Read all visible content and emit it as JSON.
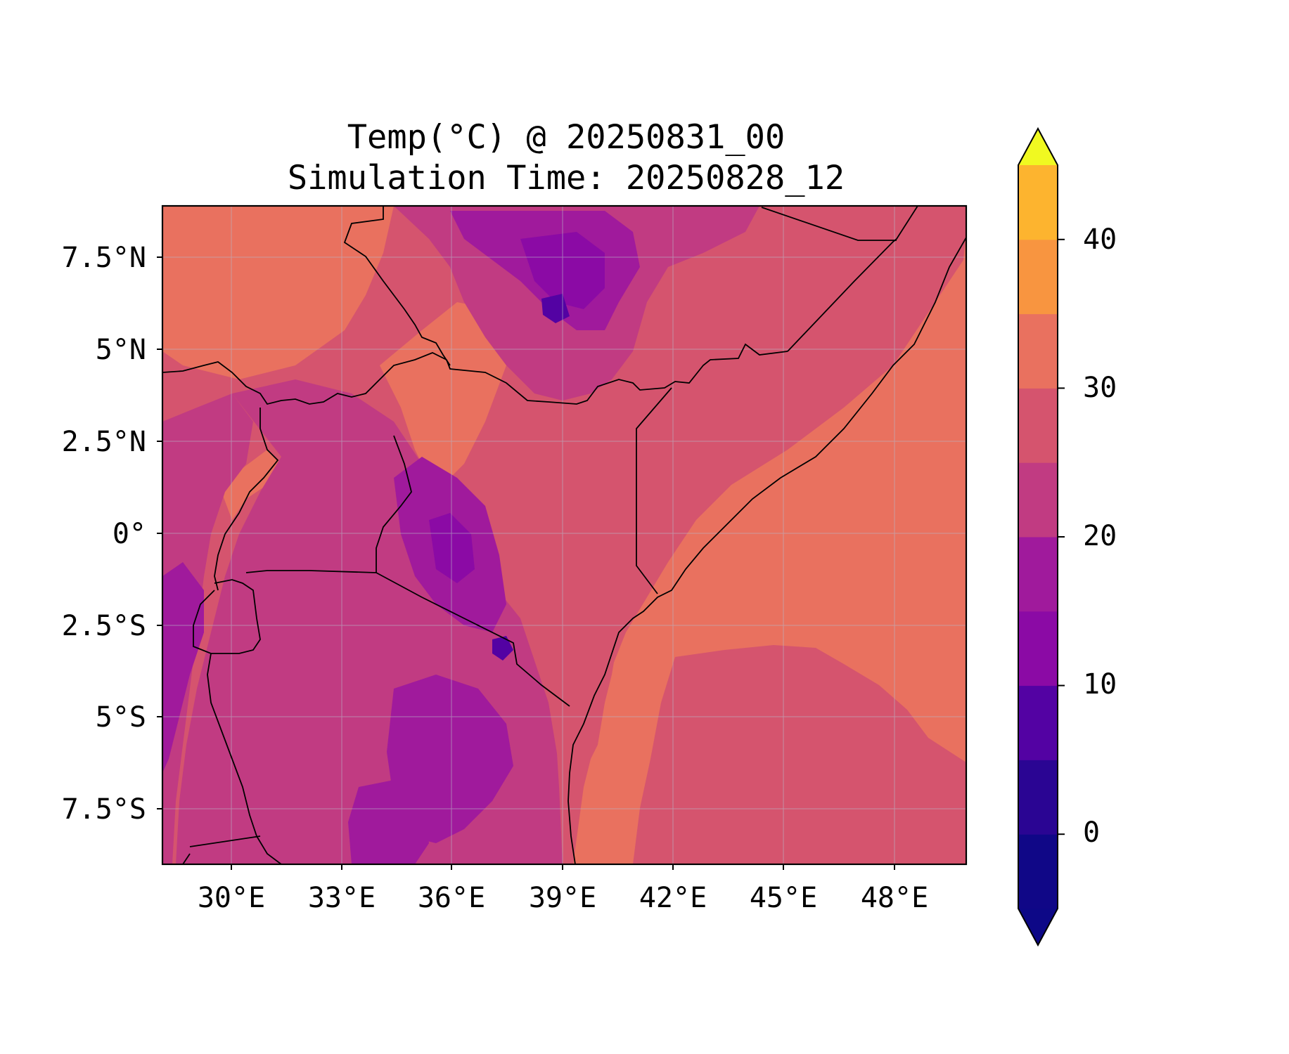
{
  "title": "Temp(°C) @ 20250831_00",
  "subtitle": "Simulation Time: 20250828_12",
  "map": {
    "region": "East Africa",
    "projection": "PlateCarree",
    "lon_range": [
      28,
      50
    ],
    "lat_range": [
      -9,
      9
    ],
    "grid": true,
    "x_ticks": [
      "30°E",
      "33°E",
      "36°E",
      "39°E",
      "42°E",
      "45°E",
      "48°E"
    ],
    "y_ticks": [
      "7.5°N",
      "5°N",
      "2.5°N",
      "0°",
      "2.5°S",
      "5°S",
      "7.5°S"
    ],
    "variable": "temperature",
    "units": "°C",
    "fill_type": "filled contour"
  },
  "colorbar": {
    "levels": [
      -5,
      0,
      5,
      10,
      15,
      20,
      25,
      30,
      35,
      40,
      45
    ],
    "tick_labels": [
      "0",
      "10",
      "20",
      "30",
      "40"
    ],
    "extend": "both",
    "colormap": "plasma",
    "colors": [
      "#100787",
      "#2a0593",
      "#5302a3",
      "#8b0aa5",
      "#a01a9c",
      "#c13b82",
      "#d5546e",
      "#e9715f",
      "#f89540",
      "#fdb42f",
      "#f0f921"
    ],
    "under_color": "#0d0887",
    "over_color": "#f0f921"
  }
}
